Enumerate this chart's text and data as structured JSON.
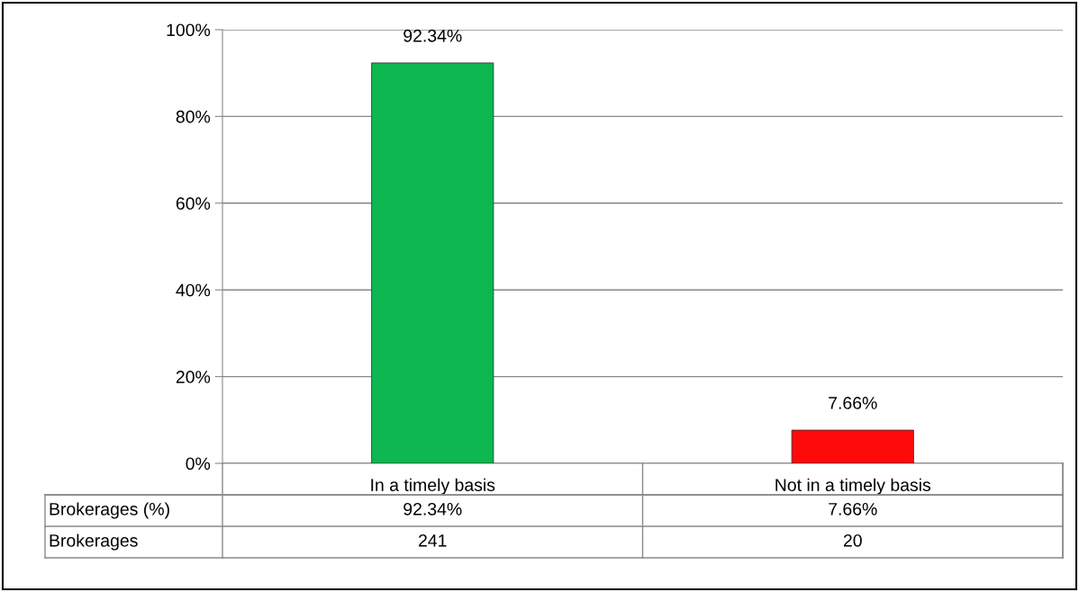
{
  "chart_data": {
    "type": "bar",
    "categories": [
      "In a timely basis",
      "Not in a timely basis"
    ],
    "series": [
      {
        "name": "Brokerages (%)",
        "colors": [
          "#0cb84f",
          "#ff0a0a"
        ],
        "values": [
          92.34,
          7.66
        ],
        "value_labels": [
          "92.34%",
          "7.66%"
        ]
      }
    ],
    "ylim": [
      0,
      100
    ],
    "yticks": [
      {
        "value": 0,
        "label": "0%"
      },
      {
        "value": 20,
        "label": "20%"
      },
      {
        "value": 40,
        "label": "40%"
      },
      {
        "value": 60,
        "label": "60%"
      },
      {
        "value": 80,
        "label": "80%"
      },
      {
        "value": 100,
        "label": "100%"
      }
    ],
    "grid": "y",
    "annotations": [
      "Brokerages",
      "241",
      "20"
    ]
  }
}
